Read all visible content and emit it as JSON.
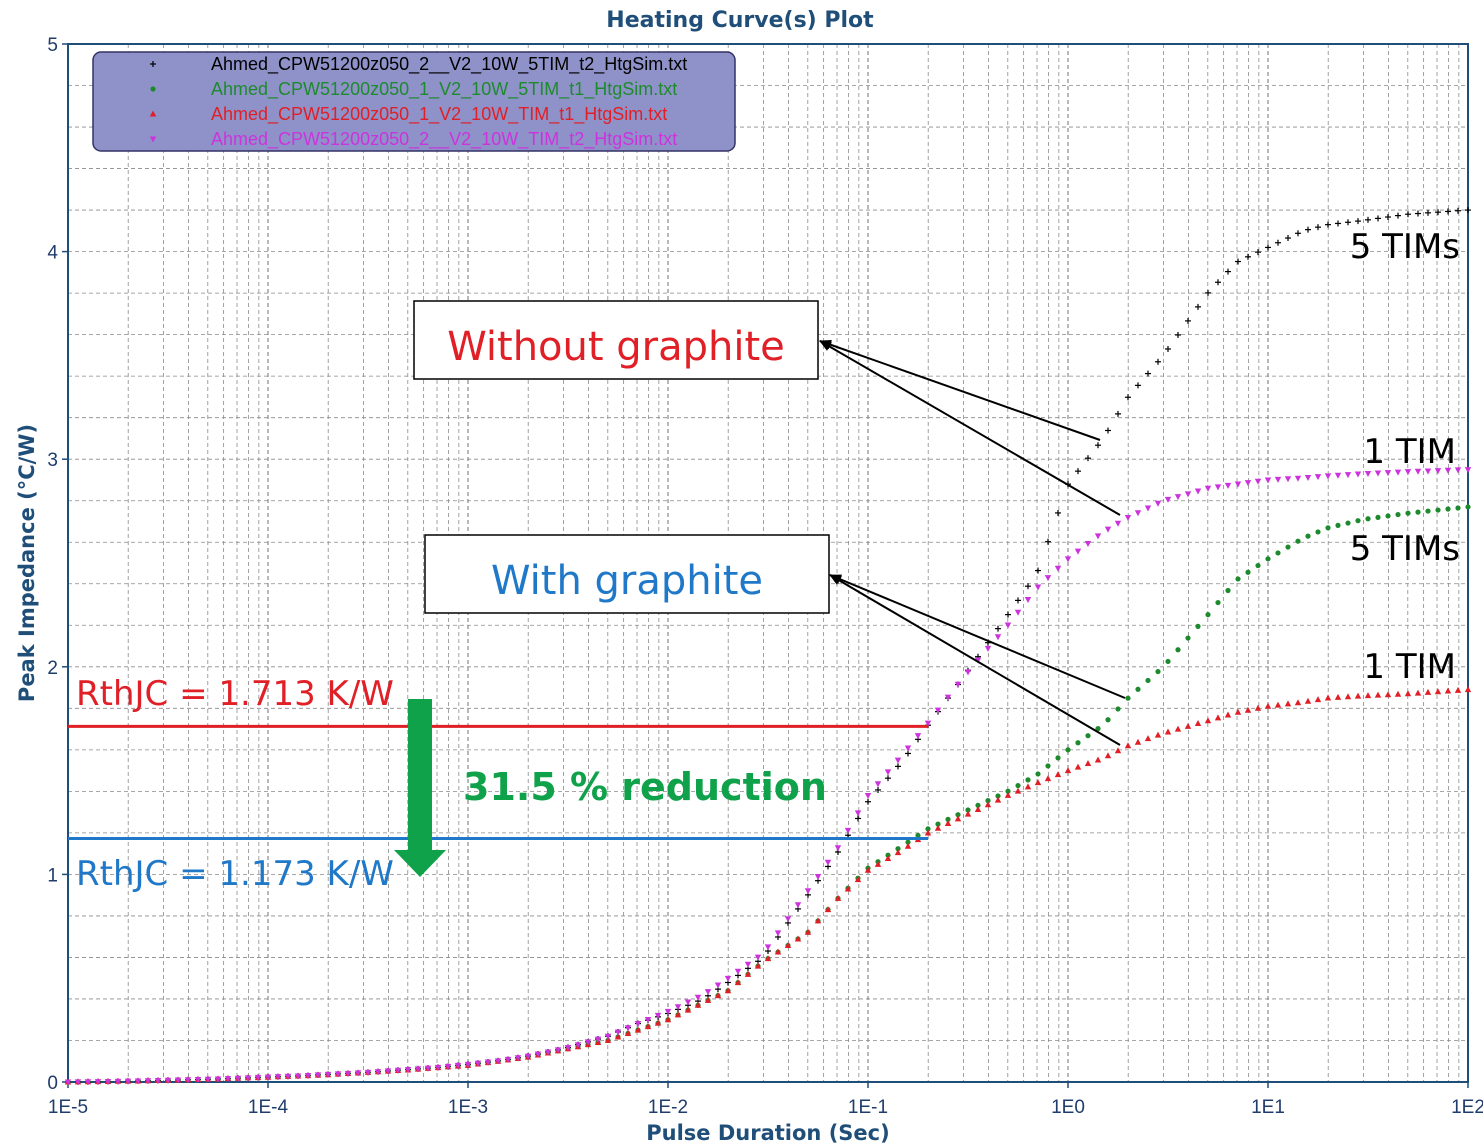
{
  "chart_data": {
    "type": "scatter",
    "title": "Heating Curve(s) Plot",
    "xlabel": "Pulse Duration (Sec)",
    "ylabel": "Peak Impedance (°C/W)",
    "xscale": "log",
    "xlim": [
      1e-05,
      100
    ],
    "ylim": [
      0,
      5
    ],
    "xticks": [
      "1E-5",
      "1E-4",
      "1E-3",
      "1E-2",
      "1E-1",
      "1E0",
      "1E1",
      "1E2"
    ],
    "yticks": [
      "0",
      "1",
      "2",
      "3",
      "4",
      "5"
    ],
    "grid": true,
    "legend_position": "top-left",
    "series": [
      {
        "name": "Ahmed_CPW51200z050_2__V2_10W_5TIM_t2_HtgSim.txt",
        "color": "#000000",
        "marker": "plus",
        "points": [
          [
            1e-05,
            0.0
          ],
          [
            1.5e-05,
            0.002
          ],
          [
            2e-05,
            0.004
          ],
          [
            3e-05,
            0.008
          ],
          [
            5e-05,
            0.013
          ],
          [
            7e-05,
            0.018
          ],
          [
            0.0001,
            0.024
          ],
          [
            0.00015,
            0.03
          ],
          [
            0.0002,
            0.037
          ],
          [
            0.0003,
            0.045
          ],
          [
            0.0005,
            0.06
          ],
          [
            0.0007,
            0.07
          ],
          [
            0.001,
            0.085
          ],
          [
            0.0015,
            0.105
          ],
          [
            0.002,
            0.125
          ],
          [
            0.003,
            0.16
          ],
          [
            0.005,
            0.22
          ],
          [
            0.007,
            0.28
          ],
          [
            0.01,
            0.33
          ],
          [
            0.015,
            0.4
          ],
          [
            0.02,
            0.48
          ],
          [
            0.03,
            0.6
          ],
          [
            0.05,
            0.9
          ],
          [
            0.07,
            1.1
          ],
          [
            0.1,
            1.35
          ],
          [
            0.15,
            1.55
          ],
          [
            0.2,
            1.72
          ],
          [
            0.3,
            1.95
          ],
          [
            0.5,
            2.25
          ],
          [
            0.7,
            2.45
          ],
          [
            1.0,
            2.88
          ],
          [
            1.5,
            3.1
          ],
          [
            2.0,
            3.3
          ],
          [
            3.0,
            3.5
          ],
          [
            5.0,
            3.8
          ],
          [
            7.0,
            3.95
          ],
          [
            10.0,
            4.02
          ],
          [
            15.0,
            4.1
          ],
          [
            20.0,
            4.13
          ],
          [
            30.0,
            4.15
          ],
          [
            50.0,
            4.18
          ],
          [
            100.0,
            4.2
          ]
        ]
      },
      {
        "name": "Ahmed_CPW51200z050_1_V2_10W_5TIM_t1_HtgSim.txt",
        "color": "#1e8a2e",
        "marker": "dot",
        "points": [
          [
            1e-05,
            0.0
          ],
          [
            2e-05,
            0.004
          ],
          [
            5e-05,
            0.013
          ],
          [
            0.0001,
            0.023
          ],
          [
            0.0002,
            0.035
          ],
          [
            0.0005,
            0.058
          ],
          [
            0.001,
            0.08
          ],
          [
            0.002,
            0.12
          ],
          [
            0.005,
            0.2
          ],
          [
            0.01,
            0.3
          ],
          [
            0.02,
            0.44
          ],
          [
            0.03,
            0.58
          ],
          [
            0.05,
            0.72
          ],
          [
            0.07,
            0.88
          ],
          [
            0.1,
            1.03
          ],
          [
            0.15,
            1.14
          ],
          [
            0.2,
            1.22
          ],
          [
            0.3,
            1.3
          ],
          [
            0.5,
            1.4
          ],
          [
            0.7,
            1.48
          ],
          [
            1.0,
            1.6
          ],
          [
            1.5,
            1.72
          ],
          [
            2.0,
            1.85
          ],
          [
            3.0,
            2.0
          ],
          [
            5.0,
            2.25
          ],
          [
            7.0,
            2.42
          ],
          [
            10.0,
            2.52
          ],
          [
            15.0,
            2.62
          ],
          [
            20.0,
            2.67
          ],
          [
            30.0,
            2.71
          ],
          [
            50.0,
            2.74
          ],
          [
            100.0,
            2.77
          ]
        ]
      },
      {
        "name": "Ahmed_CPW51200z050_1_V2_10W_TIM_t1_HtgSim.txt",
        "color": "#e01f26",
        "marker": "triangle",
        "points": [
          [
            1e-05,
            0.0
          ],
          [
            2e-05,
            0.004
          ],
          [
            5e-05,
            0.013
          ],
          [
            0.0001,
            0.023
          ],
          [
            0.0002,
            0.035
          ],
          [
            0.0005,
            0.058
          ],
          [
            0.001,
            0.08
          ],
          [
            0.002,
            0.12
          ],
          [
            0.005,
            0.2
          ],
          [
            0.01,
            0.3
          ],
          [
            0.02,
            0.44
          ],
          [
            0.03,
            0.58
          ],
          [
            0.05,
            0.72
          ],
          [
            0.07,
            0.88
          ],
          [
            0.1,
            1.02
          ],
          [
            0.15,
            1.12
          ],
          [
            0.2,
            1.2
          ],
          [
            0.3,
            1.28
          ],
          [
            0.5,
            1.38
          ],
          [
            0.7,
            1.44
          ],
          [
            1.0,
            1.5
          ],
          [
            1.5,
            1.56
          ],
          [
            2.0,
            1.62
          ],
          [
            3.0,
            1.68
          ],
          [
            5.0,
            1.74
          ],
          [
            7.0,
            1.78
          ],
          [
            10.0,
            1.81
          ],
          [
            15.0,
            1.83
          ],
          [
            20.0,
            1.85
          ],
          [
            30.0,
            1.86
          ],
          [
            50.0,
            1.87
          ],
          [
            100.0,
            1.89
          ]
        ]
      },
      {
        "name": "Ahmed_CPW51200z050_2__V2_10W_TIM_t2_HtgSim.txt",
        "color": "#cc33dd",
        "marker": "triangle-down",
        "points": [
          [
            1e-05,
            0.0
          ],
          [
            1.5e-05,
            0.002
          ],
          [
            2e-05,
            0.004
          ],
          [
            3e-05,
            0.008
          ],
          [
            5e-05,
            0.013
          ],
          [
            7e-05,
            0.018
          ],
          [
            0.0001,
            0.024
          ],
          [
            0.00015,
            0.03
          ],
          [
            0.0002,
            0.037
          ],
          [
            0.0003,
            0.045
          ],
          [
            0.0005,
            0.06
          ],
          [
            0.0007,
            0.07
          ],
          [
            0.001,
            0.085
          ],
          [
            0.0015,
            0.105
          ],
          [
            0.002,
            0.125
          ],
          [
            0.003,
            0.16
          ],
          [
            0.005,
            0.22
          ],
          [
            0.007,
            0.28
          ],
          [
            0.01,
            0.34
          ],
          [
            0.015,
            0.42
          ],
          [
            0.02,
            0.5
          ],
          [
            0.03,
            0.62
          ],
          [
            0.05,
            0.92
          ],
          [
            0.07,
            1.12
          ],
          [
            0.1,
            1.38
          ],
          [
            0.15,
            1.58
          ],
          [
            0.2,
            1.73
          ],
          [
            0.3,
            1.95
          ],
          [
            0.5,
            2.2
          ],
          [
            0.7,
            2.38
          ],
          [
            1.0,
            2.52
          ],
          [
            1.5,
            2.65
          ],
          [
            2.0,
            2.72
          ],
          [
            3.0,
            2.8
          ],
          [
            5.0,
            2.86
          ],
          [
            7.0,
            2.88
          ],
          [
            10.0,
            2.9
          ],
          [
            15.0,
            2.91
          ],
          [
            20.0,
            2.92
          ],
          [
            30.0,
            2.93
          ],
          [
            50.0,
            2.94
          ],
          [
            100.0,
            2.95
          ]
        ]
      }
    ],
    "reference_lines": [
      {
        "label": "RthJC = 1.713 K/W",
        "y": 1.713,
        "x_from": 1e-05,
        "x_to": 0.2,
        "color": "#e01f26"
      },
      {
        "label": "RthJC = 1.173 K/W",
        "y": 1.173,
        "x_from": 1e-05,
        "x_to": 0.2,
        "color": "#1f78c8"
      }
    ],
    "annotations": {
      "without_graphite": "Without graphite",
      "with_graphite": "With graphite",
      "reduction": "31.5 % reduction",
      "curve_labels": [
        "5 TIMs",
        "1 TIM",
        "5 TIMs",
        "1 TIM"
      ]
    }
  },
  "colors": {
    "axis": "#1f4e79",
    "grid": "#8a8a8a",
    "legend_bg": "#8f91c9",
    "arrow_green": "#10a24a",
    "anno_red": "#e01f26",
    "anno_blue": "#1f78c8",
    "anno_green": "#10a24a"
  }
}
